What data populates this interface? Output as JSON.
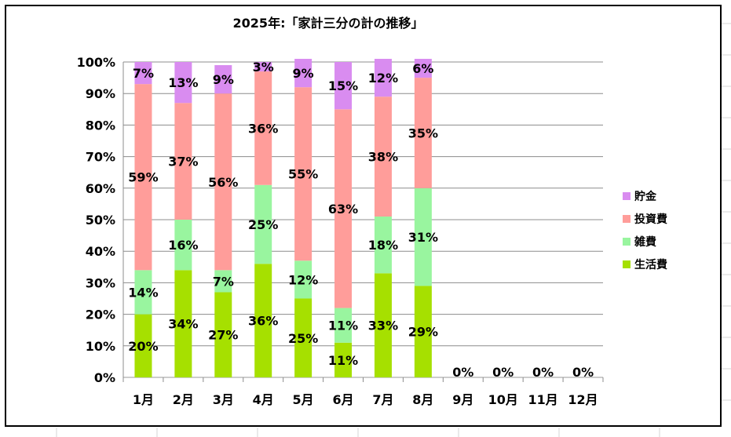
{
  "chart_data": {
    "type": "bar",
    "stacked": "percent",
    "title": "2025年:「家計三分の計の推移」",
    "categories": [
      "1月",
      "2月",
      "3月",
      "4月",
      "5月",
      "6月",
      "7月",
      "8月",
      "9月",
      "10月",
      "11月",
      "12月"
    ],
    "ylim": [
      0,
      100
    ],
    "yticks": [
      "0%",
      "10%",
      "20%",
      "30%",
      "40%",
      "50%",
      "60%",
      "70%",
      "80%",
      "90%",
      "100%"
    ],
    "grid": true,
    "legend_position": "right",
    "series": [
      {
        "name": "生活費",
        "color": "#a6e000",
        "values": [
          20,
          34,
          27,
          36,
          25,
          11,
          33,
          29,
          0,
          0,
          0,
          0
        ],
        "labels": [
          "20%",
          "34%",
          "27%",
          "36%",
          "25%",
          "11%",
          "33%",
          "29%",
          "0%",
          "0%",
          "0%",
          "0%"
        ]
      },
      {
        "name": "雑費",
        "color": "#99f59f",
        "values": [
          14,
          16,
          7,
          25,
          12,
          11,
          18,
          31,
          0,
          0,
          0,
          0
        ],
        "labels": [
          "14%",
          "16%",
          "7%",
          "25%",
          "12%",
          "11%",
          "18%",
          "31%",
          "",
          "",
          "",
          ""
        ]
      },
      {
        "name": "投資費",
        "color": "#ff9d9a",
        "values": [
          59,
          37,
          56,
          36,
          55,
          63,
          38,
          35,
          0,
          0,
          0,
          0
        ],
        "labels": [
          "59%",
          "37%",
          "56%",
          "36%",
          "55%",
          "63%",
          "38%",
          "35%",
          "",
          "",
          "",
          ""
        ]
      },
      {
        "name": "貯金",
        "color": "#d98cf0",
        "values": [
          7,
          13,
          9,
          3,
          9,
          15,
          12,
          6,
          0,
          0,
          0,
          0
        ],
        "labels": [
          "7%",
          "13%",
          "9%",
          "3%",
          "9%",
          "15%",
          "12%",
          "6%",
          "",
          "",
          "",
          ""
        ]
      }
    ]
  }
}
